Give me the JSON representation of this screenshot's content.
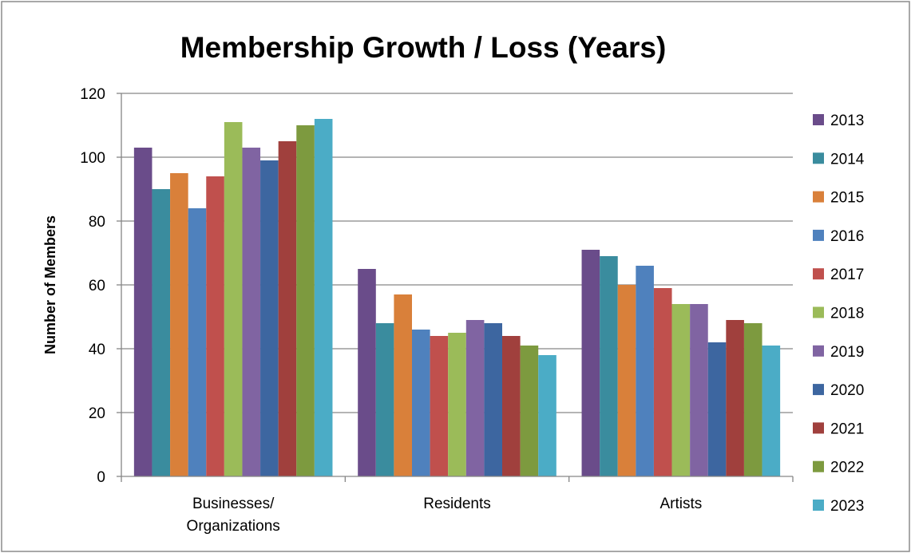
{
  "chart_data": {
    "type": "bar",
    "title": "Membership Growth / Loss (Years)",
    "xlabel": "",
    "ylabel": "Number of Members",
    "ylim": [
      0,
      120
    ],
    "yticks": [
      0,
      20,
      40,
      60,
      80,
      100,
      120
    ],
    "grid": true,
    "legend_position": "right",
    "categories": [
      [
        "Businesses/",
        "Organizations"
      ],
      [
        "Residents"
      ],
      [
        "Artists"
      ]
    ],
    "series": [
      {
        "name": "2013",
        "color": "#6A4C8A",
        "values": [
          103,
          65,
          71
        ]
      },
      {
        "name": "2014",
        "color": "#3A8C9E",
        "values": [
          90,
          48,
          69
        ]
      },
      {
        "name": "2015",
        "color": "#D9803A",
        "values": [
          95,
          57,
          60
        ]
      },
      {
        "name": "2016",
        "color": "#4F81BD",
        "values": [
          84,
          46,
          66
        ]
      },
      {
        "name": "2017",
        "color": "#C0504D",
        "values": [
          94,
          44,
          59
        ]
      },
      {
        "name": "2018",
        "color": "#9BBB59",
        "values": [
          111,
          45,
          54
        ]
      },
      {
        "name": "2019",
        "color": "#8064A2",
        "values": [
          103,
          49,
          54
        ]
      },
      {
        "name": "2020",
        "color": "#3D66A0",
        "values": [
          99,
          48,
          42
        ]
      },
      {
        "name": "2021",
        "color": "#A0403D",
        "values": [
          105,
          44,
          49
        ]
      },
      {
        "name": "2022",
        "color": "#7D9A3F",
        "values": [
          110,
          41,
          48
        ]
      },
      {
        "name": "2023",
        "color": "#4BACC6",
        "values": [
          112,
          38,
          41
        ]
      }
    ]
  }
}
